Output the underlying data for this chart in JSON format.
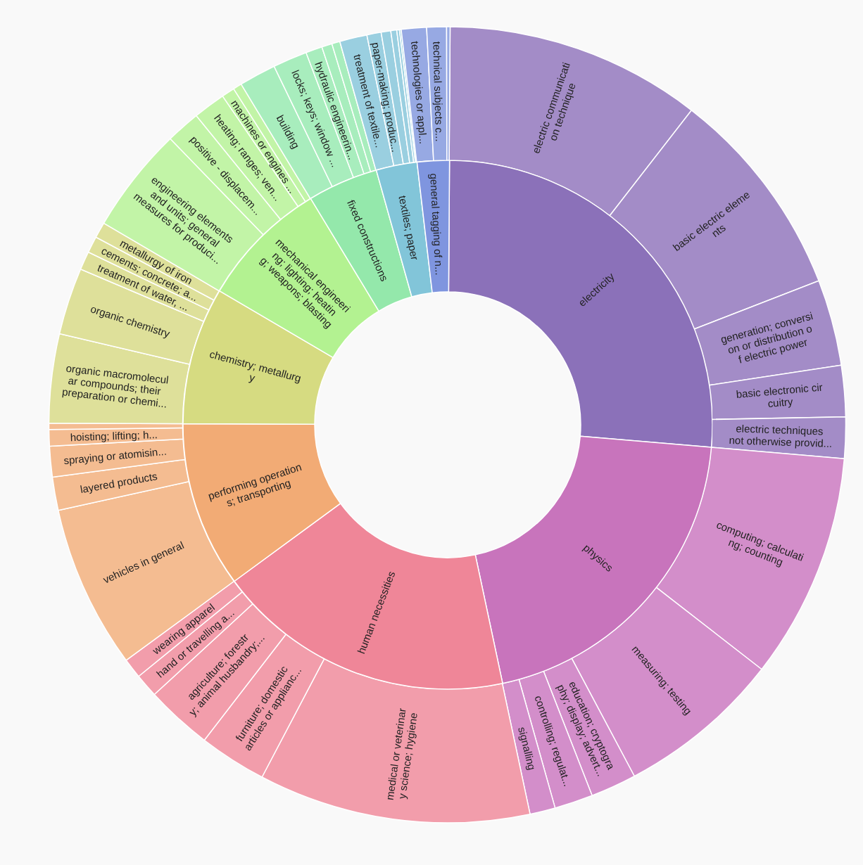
{
  "chart_data": [
    {
      "type": "donut",
      "categories": [
        "electricity",
        "physics",
        "human necessities",
        "performing operations; transporting",
        "chemistry; metallurgy",
        "mechanical engineering; lighting; heating; weapons; blasting",
        "fixed constructions",
        "textiles; paper",
        "general tagging of n..."
      ],
      "values": [
        26.25,
        20.31,
        18.25,
        10.14,
        8.39,
        7.89,
        4.31,
        2.5,
        1.96
      ],
      "colors": [
        "#8b71b9",
        "#c874bc",
        "#ef8698",
        "#f2ab75",
        "#d6db81",
        "#b3f291",
        "#94e8ab",
        "#82c5d9",
        "#7f95df"
      ]
    },
    {
      "type": "donut",
      "categories": [
        "electric communication technique",
        "basic electric elements",
        "generation; conversion or distribution of electric power",
        "basic electronic circuitry",
        "electric techniques not otherwise provid...",
        "computing; calculating; counting",
        "measuring; testing",
        "education; cryptography; display; advert...",
        "controlling; regulat...",
        "signalling",
        "medical or veterinary science; hygiene",
        "furniture; domestic articles or applianc...",
        "agriculture; forestry; animal husbandry;...",
        "hand or travelling a...",
        "wearing apparel",
        "vehicles in general",
        "layered products",
        "spraying or atomisin...",
        "hoisting; lifting; h...",
        null,
        "organic macromolecular compounds; their preparation or chemi...",
        "organic chemistry",
        "treatment of water, ...",
        "cements; concrete; a...",
        "metallurgy of iron",
        "engineering elements and units; general measures for produci...",
        "positive - displacem...",
        "heating; ranges; ven...",
        "machines or engines ...",
        null,
        "building",
        "locks; keys; window ...",
        "hydraulic engineerin...",
        null,
        null,
        "treatment of textile...",
        "paper-making; produc...",
        null,
        null,
        null,
        null,
        "technologies or appl...",
        "technical subjects c...",
        null
      ],
      "values": [
        10.39,
        8.61,
        3.5,
        2.07,
        1.68,
        9.17,
        6.69,
        1.86,
        1.56,
        1.03,
        11.03,
        2.74,
        2.71,
        0.96,
        0.81,
        6.63,
        1.35,
        1.24,
        0.67,
        0.25,
        3.61,
        2.72,
        0.75,
        0.67,
        0.64,
        4.31,
        1.39,
        1.31,
        0.53,
        0.35,
        1.5,
        1.39,
        0.67,
        0.42,
        0.33,
        1.11,
        0.58,
        0.39,
        0.24,
        0.11,
        0.07,
        1.02,
        0.8,
        0.14
      ],
      "colors": [
        "#a38cc7",
        "#a38cc7",
        "#a38cc7",
        "#a38cc7",
        "#a38cc7",
        "#d38eca",
        "#d38eca",
        "#d38eca",
        "#d38eca",
        "#d38eca",
        "#f29dab",
        "#f29dab",
        "#f29dab",
        "#f29dab",
        "#f29dab",
        "#f4bc91",
        "#f4bc91",
        "#f4bc91",
        "#f4bc91",
        "#f4bc91",
        "#dee09a",
        "#dee09a",
        "#dee09a",
        "#dee09a",
        "#dee09a",
        "#c2f4a7",
        "#c2f4a7",
        "#c2f4a7",
        "#c2f4a7",
        "#c2f4a7",
        "#a8edbd",
        "#a8edbd",
        "#a8edbd",
        "#a8edbd",
        "#a8edbd",
        "#9acfe0",
        "#9acfe0",
        "#9acfe0",
        "#9acfe0",
        "#9acfe0",
        "#9acfe0",
        "#97a9e3",
        "#97a9e3",
        "#97a9e3"
      ]
    }
  ]
}
